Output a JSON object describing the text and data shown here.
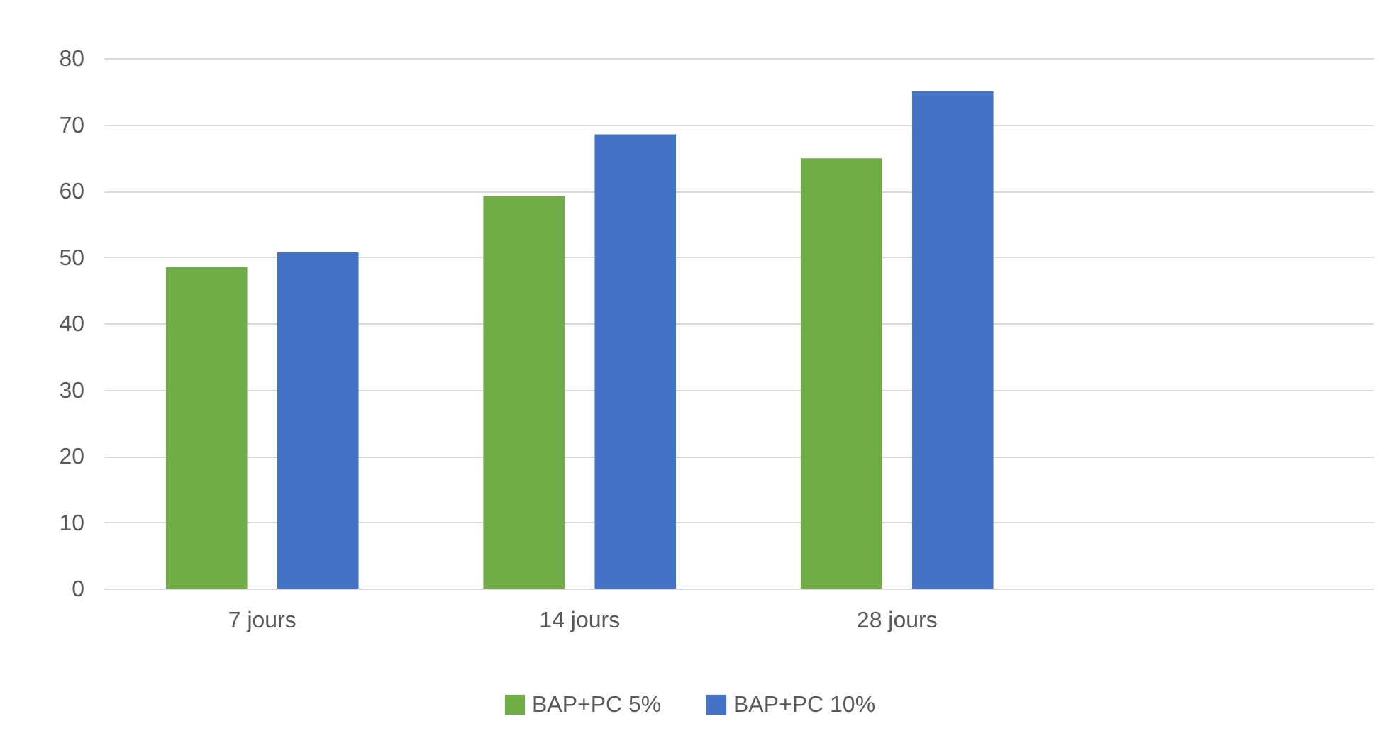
{
  "chart_data": {
    "type": "bar",
    "categories": [
      "7 jours",
      "14 jours",
      "28 jours",
      null
    ],
    "series": [
      {
        "name": "BAP+PC 5%",
        "color": "#70ad47",
        "values": [
          48.5,
          59.2,
          64.9,
          null
        ]
      },
      {
        "name": "BAP+PC 10%",
        "color": "#4472c4",
        "values": [
          50.7,
          68.5,
          75.0,
          null
        ]
      }
    ],
    "ylim": [
      0,
      80
    ],
    "yticks": [
      0,
      10,
      20,
      30,
      40,
      50,
      60,
      70,
      80
    ],
    "grid": "y",
    "legend": "bottom"
  }
}
